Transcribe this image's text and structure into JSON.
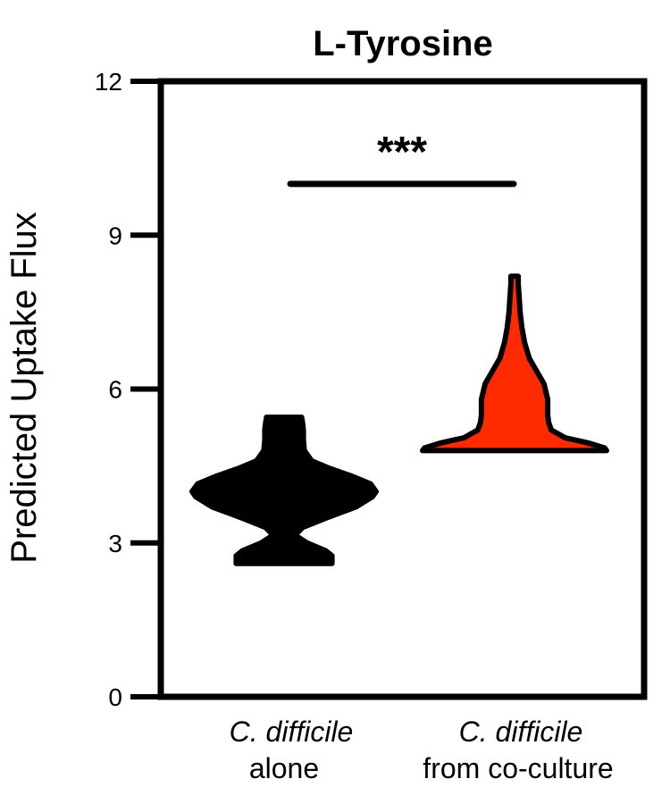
{
  "chart_data": {
    "type": "violin",
    "title": "L-Tyrosine",
    "xlabel": "",
    "ylabel": "Predicted Uptake Flux",
    "ylim": [
      0,
      12
    ],
    "yticks": [
      0,
      3,
      6,
      9,
      12
    ],
    "grid": false,
    "legend": "none",
    "categories": [
      {
        "line1": "C. difficile",
        "line2": "alone"
      },
      {
        "line1": "C. difficile",
        "line2": "from co-culture"
      }
    ],
    "series": [
      {
        "color": "#000000",
        "min": 2.6,
        "max": 5.45,
        "profile": [
          [
            2.6,
            0.52
          ],
          [
            2.75,
            0.52
          ],
          [
            2.85,
            0.45
          ],
          [
            3.0,
            0.25
          ],
          [
            3.15,
            0.12
          ],
          [
            3.3,
            0.2
          ],
          [
            3.5,
            0.48
          ],
          [
            3.7,
            0.78
          ],
          [
            3.9,
            0.96
          ],
          [
            4.0,
            1.0
          ],
          [
            4.15,
            0.94
          ],
          [
            4.3,
            0.74
          ],
          [
            4.45,
            0.5
          ],
          [
            4.6,
            0.3
          ],
          [
            4.8,
            0.22
          ],
          [
            5.0,
            0.21
          ],
          [
            5.2,
            0.21
          ],
          [
            5.35,
            0.2
          ],
          [
            5.45,
            0.19
          ]
        ]
      },
      {
        "color": "#ff2a00",
        "min": 4.8,
        "max": 8.2,
        "profile": [
          [
            4.8,
            1.0
          ],
          [
            4.85,
            0.98
          ],
          [
            4.95,
            0.8
          ],
          [
            5.05,
            0.55
          ],
          [
            5.2,
            0.4
          ],
          [
            5.35,
            0.37
          ],
          [
            5.5,
            0.36
          ],
          [
            5.8,
            0.36
          ],
          [
            6.1,
            0.32
          ],
          [
            6.35,
            0.24
          ],
          [
            6.6,
            0.16
          ],
          [
            6.9,
            0.11
          ],
          [
            7.2,
            0.08
          ],
          [
            7.5,
            0.06
          ],
          [
            7.8,
            0.05
          ],
          [
            8.05,
            0.04
          ],
          [
            8.2,
            0.04
          ]
        ]
      }
    ],
    "significance": {
      "label": "***",
      "y": 10,
      "from_category": 0,
      "to_category": 1
    }
  }
}
